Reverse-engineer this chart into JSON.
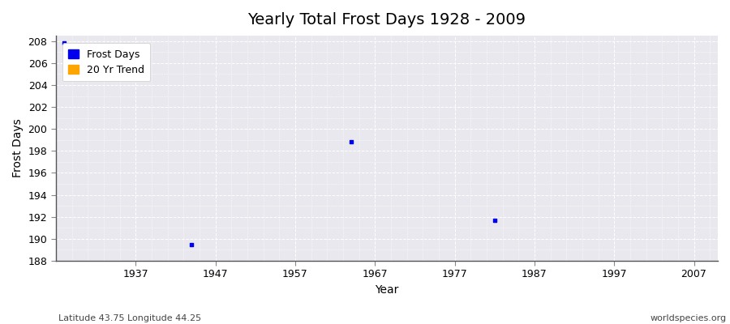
{
  "title": "Yearly Total Frost Days 1928 - 2009",
  "xlabel": "Year",
  "ylabel": "Frost Days",
  "subtitle_left": "Latitude 43.75 Longitude 44.25",
  "subtitle_right": "worldspecies.org",
  "xlim": [
    1927,
    2010
  ],
  "ylim": [
    188,
    208.5
  ],
  "yticks": [
    188,
    190,
    192,
    194,
    196,
    198,
    200,
    202,
    204,
    206,
    208
  ],
  "xticks": [
    1937,
    1947,
    1957,
    1967,
    1977,
    1987,
    1997,
    2007
  ],
  "data_points": [
    {
      "year": 1928,
      "value": 207.8
    },
    {
      "year": 1944,
      "value": 189.5
    },
    {
      "year": 1964,
      "value": 198.8
    },
    {
      "year": 1982,
      "value": 191.7
    }
  ],
  "point_color": "#0000ee",
  "trend_color": "#FFA500",
  "bg_color": "#e8e8ee",
  "grid_color": "#ffffff",
  "axis_color": "#888888",
  "legend_entries": [
    "Frost Days",
    "20 Yr Trend"
  ],
  "title_fontsize": 14,
  "label_fontsize": 10,
  "tick_fontsize": 9
}
